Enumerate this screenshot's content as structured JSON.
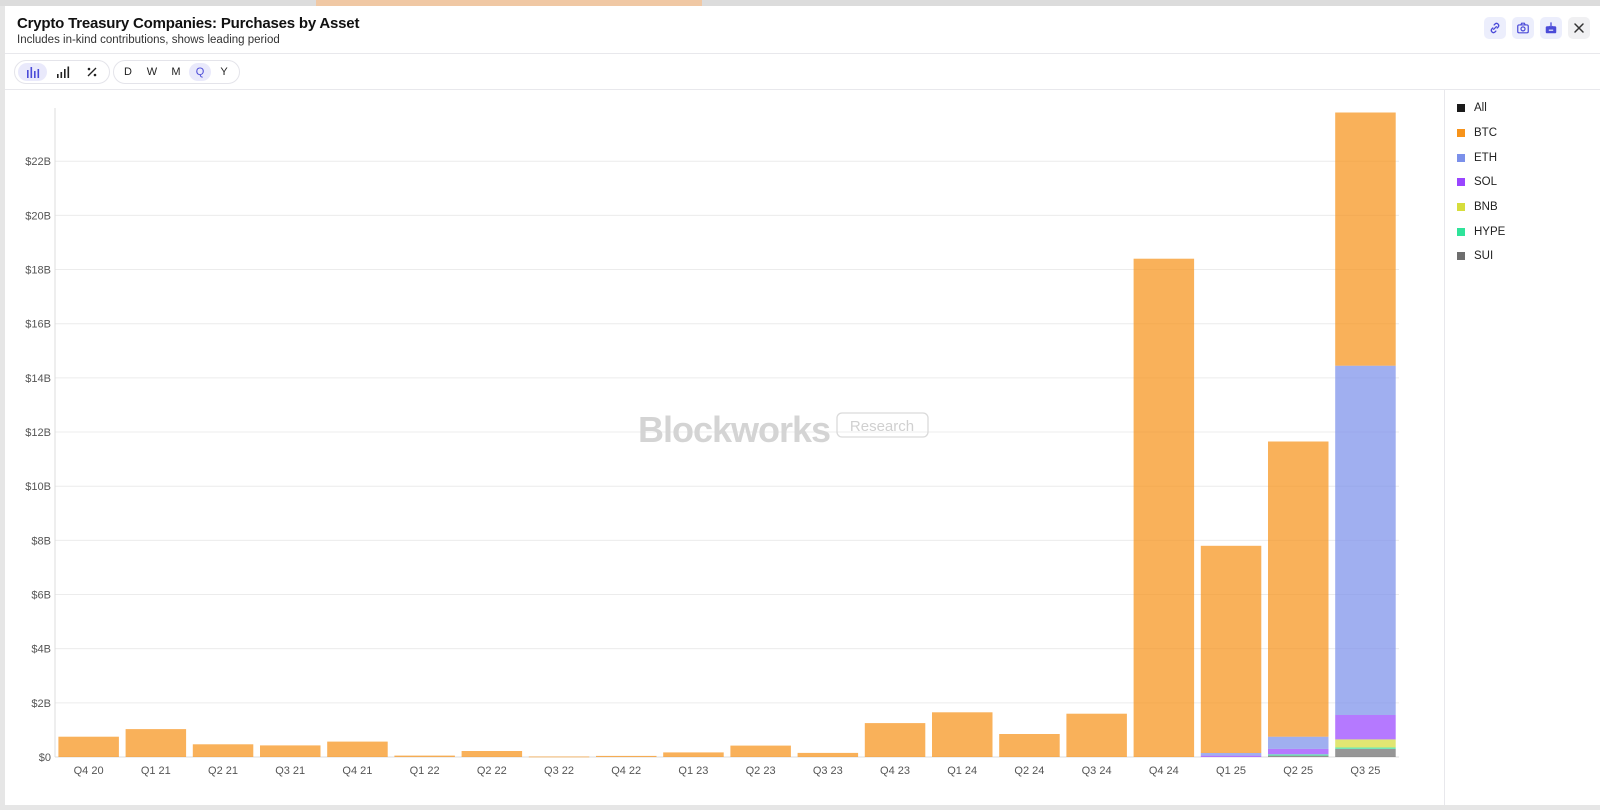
{
  "header": {
    "title": "Crypto Treasury Companies: Purchases by Asset",
    "subtitle": "Includes in-kind contributions, shows leading period",
    "buttons": [
      "link-icon",
      "camera-icon",
      "export-icon",
      "close-icon"
    ]
  },
  "toolbar": {
    "chart_modes": [
      "bar-chart-icon",
      "bar-ascending-icon",
      "percent-icon"
    ],
    "active_mode": "bar-chart-icon",
    "intervals": [
      "D",
      "W",
      "M",
      "Q",
      "Y"
    ],
    "active_interval": "Q"
  },
  "watermark": {
    "brand": "Blockworks",
    "tag": "Research"
  },
  "legend": [
    {
      "label": "All",
      "color": "#1a1a1a"
    },
    {
      "label": "BTC",
      "color": "#f7931a"
    },
    {
      "label": "ETH",
      "color": "#7b90ea"
    },
    {
      "label": "SOL",
      "color": "#9945ff"
    },
    {
      "label": "BNB",
      "color": "#d6dd3c"
    },
    {
      "label": "HYPE",
      "color": "#2fe39a"
    },
    {
      "label": "SUI",
      "color": "#6e6e6e"
    }
  ],
  "chart_data": {
    "type": "bar",
    "stacked": true,
    "title": "Crypto Treasury Companies: Purchases by Asset",
    "subtitle": "Includes in-kind contributions, shows leading period",
    "y_unit": "USD billions",
    "ylim": [
      0,
      24
    ],
    "y_ticks": [
      "$0",
      "$2B",
      "$4B",
      "$6B",
      "$8B",
      "$10B",
      "$12B",
      "$14B",
      "$16B",
      "$18B",
      "$20B",
      "$22B"
    ],
    "grid": true,
    "legend_position": "right",
    "categories": [
      "Q4 20",
      "Q1 21",
      "Q2 21",
      "Q3 21",
      "Q4 21",
      "Q1 22",
      "Q2 22",
      "Q3 22",
      "Q4 22",
      "Q1 23",
      "Q2 23",
      "Q3 23",
      "Q4 23",
      "Q1 24",
      "Q2 24",
      "Q3 24",
      "Q4 24",
      "Q1 25",
      "Q2 25",
      "Q3 25"
    ],
    "series": [
      {
        "name": "SUI",
        "color": "#6e6e6e",
        "values": [
          0,
          0,
          0,
          0,
          0,
          0,
          0,
          0,
          0,
          0,
          0,
          0,
          0,
          0,
          0,
          0,
          0,
          0,
          0.05,
          0.3
        ]
      },
      {
        "name": "HYPE",
        "color": "#2fe39a",
        "values": [
          0,
          0,
          0,
          0,
          0,
          0,
          0,
          0,
          0,
          0,
          0,
          0,
          0,
          0,
          0,
          0,
          0,
          0,
          0.05,
          0.05
        ]
      },
      {
        "name": "BNB",
        "color": "#d6dd3c",
        "values": [
          0,
          0,
          0,
          0,
          0,
          0,
          0,
          0,
          0,
          0,
          0,
          0,
          0,
          0,
          0,
          0,
          0,
          0,
          0,
          0.3
        ]
      },
      {
        "name": "SOL",
        "color": "#9945ff",
        "values": [
          0,
          0,
          0,
          0,
          0,
          0,
          0,
          0,
          0,
          0,
          0,
          0,
          0,
          0,
          0,
          0,
          0,
          0.05,
          0.2,
          0.9
        ]
      },
      {
        "name": "ETH",
        "color": "#7b90ea",
        "values": [
          0,
          0,
          0,
          0,
          0,
          0,
          0,
          0,
          0,
          0,
          0,
          0,
          0,
          0,
          0,
          0,
          0,
          0.1,
          0.45,
          12.9
        ]
      },
      {
        "name": "BTC",
        "color": "#f7931a",
        "values": [
          0.75,
          1.03,
          0.47,
          0.43,
          0.57,
          0.05,
          0.22,
          0.02,
          0.04,
          0.17,
          0.42,
          0.15,
          1.25,
          1.65,
          0.85,
          1.6,
          18.4,
          7.65,
          10.9,
          9.35
        ]
      }
    ]
  }
}
